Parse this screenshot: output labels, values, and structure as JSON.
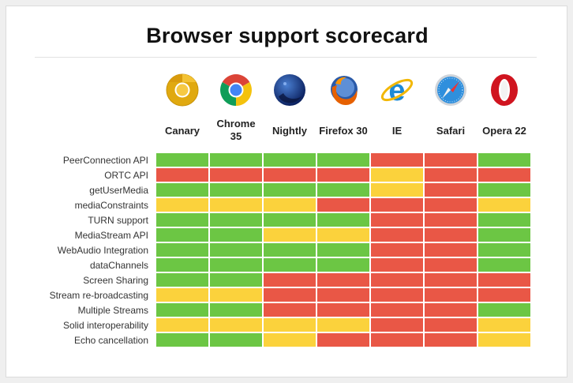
{
  "title": "Browser support scorecard",
  "colors": {
    "green": "#6cc644",
    "red": "#e95746",
    "yellow": "#fbd23c"
  },
  "browsers": [
    {
      "label": "Canary",
      "icon": "chrome-canary-icon"
    },
    {
      "label": "Chrome\n35",
      "icon": "chrome-icon"
    },
    {
      "label": "Nightly",
      "icon": "firefox-nightly-icon"
    },
    {
      "label": "Firefox 30",
      "icon": "firefox-icon"
    },
    {
      "label": "IE",
      "icon": "internet-explorer-icon"
    },
    {
      "label": "Safari",
      "icon": "safari-icon"
    },
    {
      "label": "Opera 22",
      "icon": "opera-icon"
    }
  ],
  "features": [
    {
      "label": "PeerConnection API",
      "support": [
        "green",
        "green",
        "green",
        "green",
        "red",
        "red",
        "green"
      ]
    },
    {
      "label": "ORTC API",
      "support": [
        "red",
        "red",
        "red",
        "red",
        "yellow",
        "red",
        "red"
      ]
    },
    {
      "label": "getUserMedia",
      "support": [
        "green",
        "green",
        "green",
        "green",
        "yellow",
        "red",
        "green"
      ]
    },
    {
      "label": "mediaConstraints",
      "support": [
        "yellow",
        "yellow",
        "yellow",
        "red",
        "red",
        "red",
        "yellow"
      ]
    },
    {
      "label": "TURN support",
      "support": [
        "green",
        "green",
        "green",
        "green",
        "red",
        "red",
        "green"
      ]
    },
    {
      "label": "MediaStream API",
      "support": [
        "green",
        "green",
        "yellow",
        "yellow",
        "red",
        "red",
        "green"
      ]
    },
    {
      "label": "WebAudio Integration",
      "support": [
        "green",
        "green",
        "green",
        "green",
        "red",
        "red",
        "green"
      ]
    },
    {
      "label": "dataChannels",
      "support": [
        "green",
        "green",
        "green",
        "green",
        "red",
        "red",
        "green"
      ]
    },
    {
      "label": "Screen Sharing",
      "support": [
        "green",
        "green",
        "red",
        "red",
        "red",
        "red",
        "red"
      ]
    },
    {
      "label": "Stream re-broadcasting",
      "support": [
        "yellow",
        "yellow",
        "red",
        "red",
        "red",
        "red",
        "red"
      ]
    },
    {
      "label": "Multiple Streams",
      "support": [
        "green",
        "green",
        "red",
        "red",
        "red",
        "red",
        "green"
      ]
    },
    {
      "label": "Solid interoperability",
      "support": [
        "yellow",
        "yellow",
        "yellow",
        "yellow",
        "red",
        "red",
        "yellow"
      ]
    },
    {
      "label": "Echo cancellation",
      "support": [
        "green",
        "green",
        "yellow",
        "red",
        "red",
        "red",
        "yellow"
      ]
    }
  ]
}
